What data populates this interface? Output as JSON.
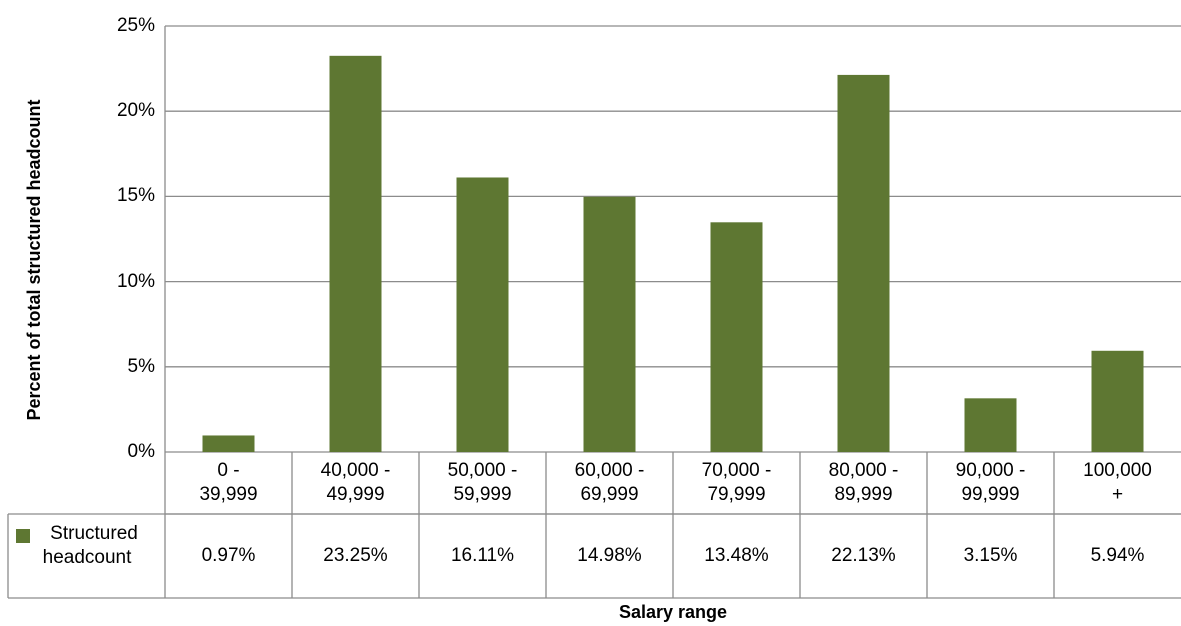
{
  "chart_data": {
    "type": "bar",
    "x_label": "Salary range",
    "y_label": "Percent of total structured headcount",
    "categories": [
      "0 -\n39,999",
      "40,000 -\n49,999",
      "50,000 -\n59,999",
      "60,000 -\n69,999",
      "70,000 -\n79,999",
      "80,000 -\n89,999",
      "90,000 -\n99,999",
      "100,000\n+"
    ],
    "series": [
      {
        "name": "Structured headcount",
        "color": "#5e7732",
        "values": [
          0.97,
          23.25,
          16.11,
          14.98,
          13.48,
          22.13,
          3.15,
          5.94
        ],
        "value_labels": [
          "0.97%",
          "23.25%",
          "16.11%",
          "14.98%",
          "13.48%",
          "22.13%",
          "3.15%",
          "5.94%"
        ]
      }
    ],
    "ylim": [
      0,
      25
    ],
    "yticks": [
      {
        "value": 0,
        "label": "0%"
      },
      {
        "value": 5,
        "label": "5%"
      },
      {
        "value": 10,
        "label": "10%"
      },
      {
        "value": 15,
        "label": "15%"
      },
      {
        "value": 20,
        "label": "20%"
      },
      {
        "value": 25,
        "label": "25%"
      }
    ],
    "grid": true,
    "data_table": true
  }
}
